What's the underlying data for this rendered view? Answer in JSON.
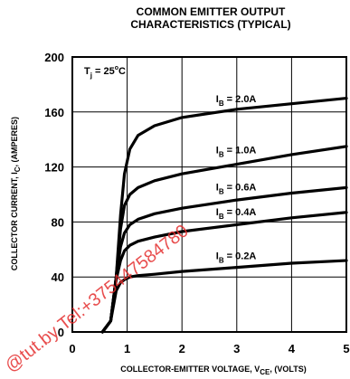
{
  "chart_data": {
    "type": "line",
    "title_lines": [
      "COMMON EMITTER OUTPUT",
      "CHARACTERISTICS (TYPICAL)"
    ],
    "xlabel": {
      "main": "COLLECTOR-EMITTER VOLTAGE, V",
      "sub": "CE",
      "tail": ", (VOLTS)"
    },
    "ylabel": {
      "main": "COLLECTOR CURRENT, I",
      "sub": "C",
      "tail": ", (AMPERES)"
    },
    "xlim": [
      0,
      5
    ],
    "ylim": [
      0,
      200
    ],
    "x_ticks": [
      "0",
      "1",
      "2",
      "3",
      "4",
      "5"
    ],
    "y_ticks": [
      "0",
      "40",
      "80",
      "120",
      "160",
      "200"
    ],
    "grid": true,
    "annotation": {
      "main": "T",
      "sub": "j",
      "mid": " = 25",
      "sup": "o",
      "tail": "C"
    },
    "series": [
      {
        "name": "2.0A",
        "label_pos": [
          2.62,
          167
        ],
        "values": [
          [
            0.55,
            0
          ],
          [
            0.7,
            8
          ],
          [
            0.8,
            40
          ],
          [
            0.88,
            85
          ],
          [
            0.95,
            115
          ],
          [
            1.05,
            133
          ],
          [
            1.2,
            143
          ],
          [
            1.5,
            150
          ],
          [
            2.0,
            156
          ],
          [
            3.0,
            162
          ],
          [
            4.0,
            166
          ],
          [
            5.0,
            170
          ]
        ]
      },
      {
        "name": "1.0A",
        "label_pos": [
          2.62,
          130
        ],
        "values": [
          [
            0.55,
            0
          ],
          [
            0.7,
            8
          ],
          [
            0.8,
            40
          ],
          [
            0.88,
            75
          ],
          [
            0.95,
            92
          ],
          [
            1.05,
            100
          ],
          [
            1.2,
            105
          ],
          [
            1.5,
            110
          ],
          [
            2.0,
            115
          ],
          [
            3.0,
            122
          ],
          [
            4.0,
            129
          ],
          [
            5.0,
            135
          ]
        ]
      },
      {
        "name": "0.6A",
        "label_pos": [
          2.62,
          103
        ],
        "values": [
          [
            0.55,
            0
          ],
          [
            0.7,
            8
          ],
          [
            0.8,
            40
          ],
          [
            0.88,
            62
          ],
          [
            0.95,
            72
          ],
          [
            1.05,
            78
          ],
          [
            1.2,
            82
          ],
          [
            1.5,
            86
          ],
          [
            2.0,
            90
          ],
          [
            3.0,
            96
          ],
          [
            4.0,
            101
          ],
          [
            5.0,
            105
          ]
        ]
      },
      {
        "name": "0.4A",
        "label_pos": [
          2.62,
          85
        ],
        "values": [
          [
            0.55,
            0
          ],
          [
            0.7,
            8
          ],
          [
            0.8,
            38
          ],
          [
            0.88,
            52
          ],
          [
            0.95,
            59
          ],
          [
            1.05,
            63
          ],
          [
            1.2,
            66
          ],
          [
            1.5,
            69
          ],
          [
            2.0,
            73
          ],
          [
            3.0,
            78
          ],
          [
            4.0,
            83
          ],
          [
            5.0,
            87
          ]
        ]
      },
      {
        "name": "0.2A",
        "label_pos": [
          2.62,
          53
        ],
        "values": [
          [
            0.55,
            0
          ],
          [
            0.7,
            8
          ],
          [
            0.8,
            30
          ],
          [
            0.88,
            36
          ],
          [
            0.95,
            38
          ],
          [
            1.05,
            40
          ],
          [
            1.2,
            41
          ],
          [
            1.5,
            42
          ],
          [
            2.0,
            44
          ],
          [
            3.0,
            47
          ],
          [
            4.0,
            50
          ],
          [
            5.0,
            52
          ]
        ]
      }
    ],
    "series_label_prefix": {
      "main": "I",
      "sub": "B",
      "tail": " = "
    },
    "watermark": "@tut.by Tel:+375447584780",
    "colors": {
      "line": "#000000",
      "watermark": "#e53030"
    }
  }
}
